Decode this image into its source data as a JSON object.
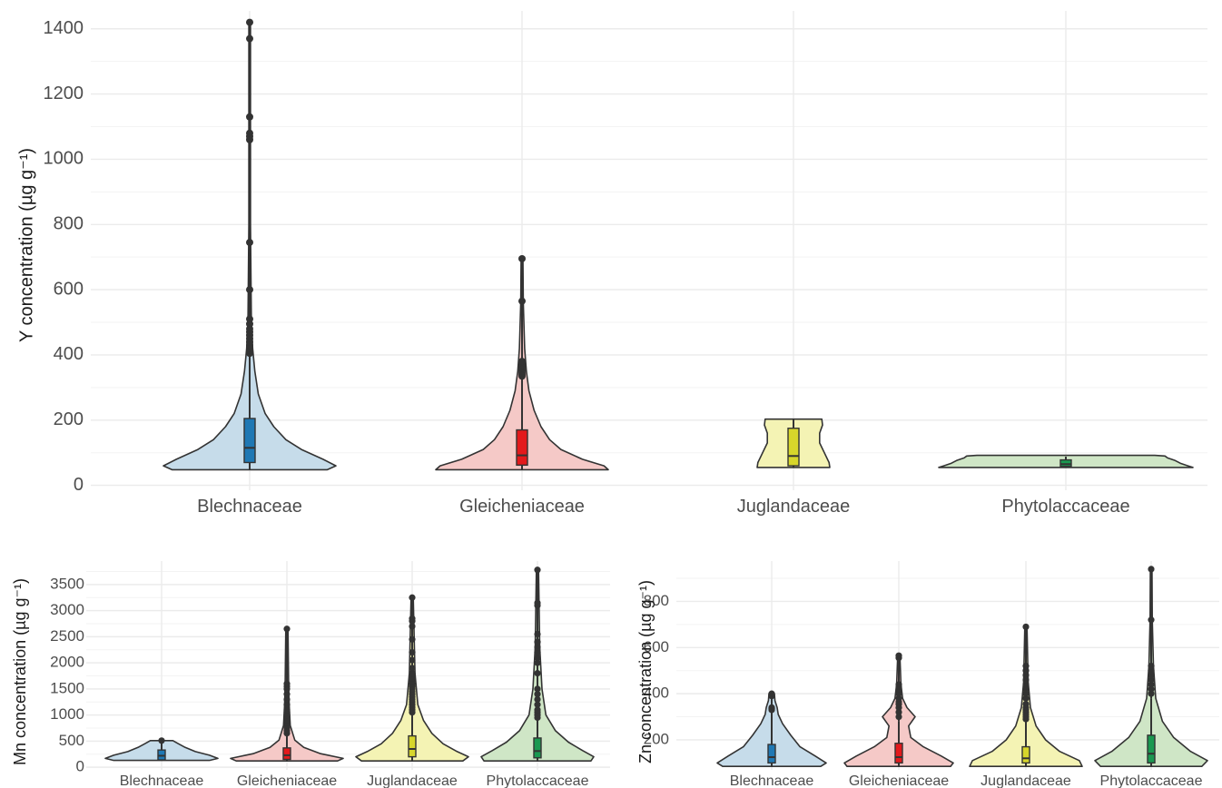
{
  "colors": {
    "Blechnaceae": {
      "fill": "#c6dcea",
      "box": "#1f78b4"
    },
    "Gleicheniaceae": {
      "fill": "#f5c9c7",
      "box": "#e31a1c"
    },
    "Juglandaceae": {
      "fill": "#f4f3b4",
      "box": "#d7d62b"
    },
    "Phytolaccaceae": {
      "fill": "#cfe6c6",
      "box": "#1a9850"
    },
    "grid": "#ebebeb",
    "outline": "#333333"
  },
  "chart_data": [
    {
      "type": "violin",
      "ylabel": "Y concentration (µg g⁻¹)",
      "ylim": [
        -15,
        1455
      ],
      "yticks": [
        0,
        200,
        400,
        600,
        800,
        1000,
        1200,
        1400
      ],
      "categories": [
        "Blechnaceae",
        "Gleicheniaceae",
        "Juglandaceae",
        "Phytolaccaceae"
      ],
      "grid": true,
      "series": [
        {
          "category": "Blechnaceae",
          "min": 48,
          "q1": 70,
          "median": 115,
          "q3": 205,
          "upper_whisker": 400,
          "outliers": [
            405,
            410,
            415,
            420,
            425,
            430,
            440,
            450,
            460,
            470,
            480,
            495,
            510,
            600,
            745,
            1060,
            1070,
            1080,
            1130,
            1370,
            1420
          ],
          "density": [
            [
              48,
              0.9
            ],
            [
              60,
              1.0
            ],
            [
              80,
              0.85
            ],
            [
              110,
              0.6
            ],
            [
              140,
              0.42
            ],
            [
              180,
              0.28
            ],
            [
              220,
              0.18
            ],
            [
              280,
              0.1
            ],
            [
              350,
              0.06
            ],
            [
              420,
              0.035
            ],
            [
              500,
              0.02
            ],
            [
              800,
              0.01
            ],
            [
              1420,
              0.01
            ]
          ]
        },
        {
          "category": "Gleicheniaceae",
          "min": 48,
          "q1": 62,
          "median": 92,
          "q3": 170,
          "upper_whisker": 330,
          "outliers": [
            335,
            340,
            345,
            350,
            355,
            360,
            365,
            370,
            375,
            380,
            565,
            695
          ],
          "density": [
            [
              48,
              1.0
            ],
            [
              60,
              0.95
            ],
            [
              80,
              0.7
            ],
            [
              110,
              0.45
            ],
            [
              140,
              0.32
            ],
            [
              180,
              0.22
            ],
            [
              230,
              0.14
            ],
            [
              290,
              0.08
            ],
            [
              350,
              0.05
            ],
            [
              420,
              0.03
            ],
            [
              560,
              0.015
            ],
            [
              695,
              0.01
            ]
          ]
        },
        {
          "category": "Juglandaceae",
          "min": 55,
          "q1": 60,
          "median": 90,
          "q3": 175,
          "upper_whisker": 203,
          "outliers": [],
          "density": [
            [
              55,
              1.0
            ],
            [
              70,
              0.98
            ],
            [
              100,
              0.85
            ],
            [
              130,
              0.72
            ],
            [
              160,
              0.72
            ],
            [
              185,
              0.8
            ],
            [
              203,
              0.78
            ]
          ]
        },
        {
          "category": "Phytolaccaceae",
          "min": 55,
          "q1": 58,
          "median": 65,
          "q3": 78,
          "upper_whisker": 88,
          "outliers": [],
          "density": [
            [
              55,
              1.0
            ],
            [
              60,
              0.96
            ],
            [
              68,
              0.9
            ],
            [
              76,
              0.86
            ],
            [
              84,
              0.8
            ],
            [
              90,
              0.78
            ],
            [
              92,
              0.7
            ]
          ]
        }
      ]
    },
    {
      "type": "violin",
      "ylabel": "Mn concentration (µg g⁻¹)",
      "ylim": [
        -50,
        3950
      ],
      "yticks": [
        0,
        500,
        1000,
        1500,
        2000,
        2500,
        3000,
        3500
      ],
      "categories": [
        "Blechnaceae",
        "Gleicheniaceae",
        "Juglandaceae",
        "Phytolaccaceae"
      ],
      "grid": true,
      "series": [
        {
          "category": "Blechnaceae",
          "min": 130,
          "q1": 140,
          "median": 220,
          "q3": 330,
          "upper_whisker": 500,
          "outliers": [
            510
          ],
          "density": [
            [
              130,
              0.85
            ],
            [
              170,
              1.0
            ],
            [
              230,
              0.85
            ],
            [
              300,
              0.6
            ],
            [
              380,
              0.42
            ],
            [
              450,
              0.3
            ],
            [
              510,
              0.2
            ]
          ]
        },
        {
          "category": "Gleicheniaceae",
          "min": 120,
          "q1": 150,
          "median": 230,
          "q3": 370,
          "upper_whisker": 600,
          "outliers": [
            650,
            700,
            750,
            800,
            850,
            900,
            950,
            1000,
            1050,
            1100,
            1200,
            1300,
            1400,
            1500,
            1550,
            1600,
            2650
          ],
          "density": [
            [
              120,
              0.9
            ],
            [
              170,
              1.0
            ],
            [
              260,
              0.6
            ],
            [
              380,
              0.3
            ],
            [
              520,
              0.14
            ],
            [
              800,
              0.06
            ],
            [
              1200,
              0.04
            ],
            [
              1600,
              0.03
            ],
            [
              2650,
              0.02
            ]
          ]
        },
        {
          "category": "Juglandaceae",
          "min": 120,
          "q1": 200,
          "median": 350,
          "q3": 600,
          "upper_whisker": 1000,
          "outliers": [
            1050,
            1100,
            1150,
            1200,
            1250,
            1300,
            1350,
            1400,
            1450,
            1500,
            1550,
            1600,
            1650,
            1700,
            1750,
            1800,
            1900,
            2050,
            2200,
            2450,
            2700,
            2800,
            2850,
            3250
          ],
          "density": [
            [
              120,
              0.9
            ],
            [
              200,
              1.0
            ],
            [
              300,
              0.8
            ],
            [
              450,
              0.55
            ],
            [
              650,
              0.35
            ],
            [
              900,
              0.2
            ],
            [
              1200,
              0.1
            ],
            [
              1800,
              0.05
            ],
            [
              3250,
              0.02
            ]
          ]
        },
        {
          "category": "Phytolaccaceae",
          "min": 120,
          "q1": 180,
          "median": 310,
          "q3": 560,
          "upper_whisker": 900,
          "outliers": [
            950,
            1000,
            1050,
            1100,
            1200,
            1300,
            1400,
            1500,
            1800,
            2000,
            2100,
            2200,
            2300,
            2400,
            2550,
            3100,
            3150,
            3780
          ],
          "density": [
            [
              120,
              0.95
            ],
            [
              200,
              1.0
            ],
            [
              320,
              0.8
            ],
            [
              480,
              0.55
            ],
            [
              700,
              0.32
            ],
            [
              1000,
              0.15
            ],
            [
              1500,
              0.08
            ],
            [
              2300,
              0.04
            ],
            [
              3780,
              0.02
            ]
          ]
        }
      ]
    },
    {
      "type": "violin",
      "ylabel": "Zn concentration (µg g⁻¹)",
      "ylim": [
        70,
        975
      ],
      "yticks": [
        200,
        400,
        600,
        800
      ],
      "categories": [
        "Blechnaceae",
        "Gleicheniaceae",
        "Juglandaceae",
        "Phytolaccaceae"
      ],
      "grid": true,
      "series": [
        {
          "category": "Blechnaceae",
          "min": 85,
          "q1": 100,
          "median": 125,
          "q3": 180,
          "upper_whisker": 320,
          "outliers": [
            330,
            335,
            340,
            390,
            395,
            400
          ],
          "density": [
            [
              85,
              0.9
            ],
            [
              100,
              1.0
            ],
            [
              130,
              0.8
            ],
            [
              170,
              0.52
            ],
            [
              220,
              0.35
            ],
            [
              270,
              0.2
            ],
            [
              310,
              0.12
            ],
            [
              340,
              0.1
            ],
            [
              370,
              0.06
            ],
            [
              400,
              0.05
            ]
          ]
        },
        {
          "category": "Gleicheniaceae",
          "min": 85,
          "q1": 100,
          "median": 125,
          "q3": 185,
          "upper_whisker": 280,
          "outliers": [
            300,
            320,
            340,
            355,
            365,
            380,
            400,
            420,
            430,
            440,
            555,
            565
          ],
          "density": [
            [
              85,
              0.95
            ],
            [
              100,
              1.0
            ],
            [
              130,
              0.78
            ],
            [
              170,
              0.45
            ],
            [
              210,
              0.22
            ],
            [
              260,
              0.18
            ],
            [
              300,
              0.3
            ],
            [
              340,
              0.15
            ],
            [
              380,
              0.07
            ],
            [
              440,
              0.04
            ],
            [
              565,
              0.02
            ]
          ]
        },
        {
          "category": "Juglandaceae",
          "min": 85,
          "q1": 100,
          "median": 120,
          "q3": 170,
          "upper_whisker": 280,
          "outliers": [
            290,
            300,
            310,
            320,
            330,
            340,
            355,
            380,
            400,
            420,
            440,
            460,
            480,
            500,
            520,
            690
          ],
          "density": [
            [
              85,
              1.0
            ],
            [
              110,
              0.95
            ],
            [
              150,
              0.6
            ],
            [
              200,
              0.35
            ],
            [
              260,
              0.18
            ],
            [
              340,
              0.08
            ],
            [
              450,
              0.04
            ],
            [
              690,
              0.02
            ]
          ]
        },
        {
          "category": "Phytolaccaceae",
          "min": 85,
          "q1": 100,
          "median": 140,
          "q3": 220,
          "upper_whisker": 380,
          "outliers": [
            400,
            420,
            440,
            460,
            480,
            500,
            520,
            720,
            940
          ],
          "density": [
            [
              85,
              0.9
            ],
            [
              110,
              1.0
            ],
            [
              150,
              0.7
            ],
            [
              210,
              0.4
            ],
            [
              280,
              0.2
            ],
            [
              380,
              0.08
            ],
            [
              520,
              0.04
            ],
            [
              720,
              0.02
            ],
            [
              940,
              0.015
            ]
          ]
        }
      ]
    }
  ]
}
